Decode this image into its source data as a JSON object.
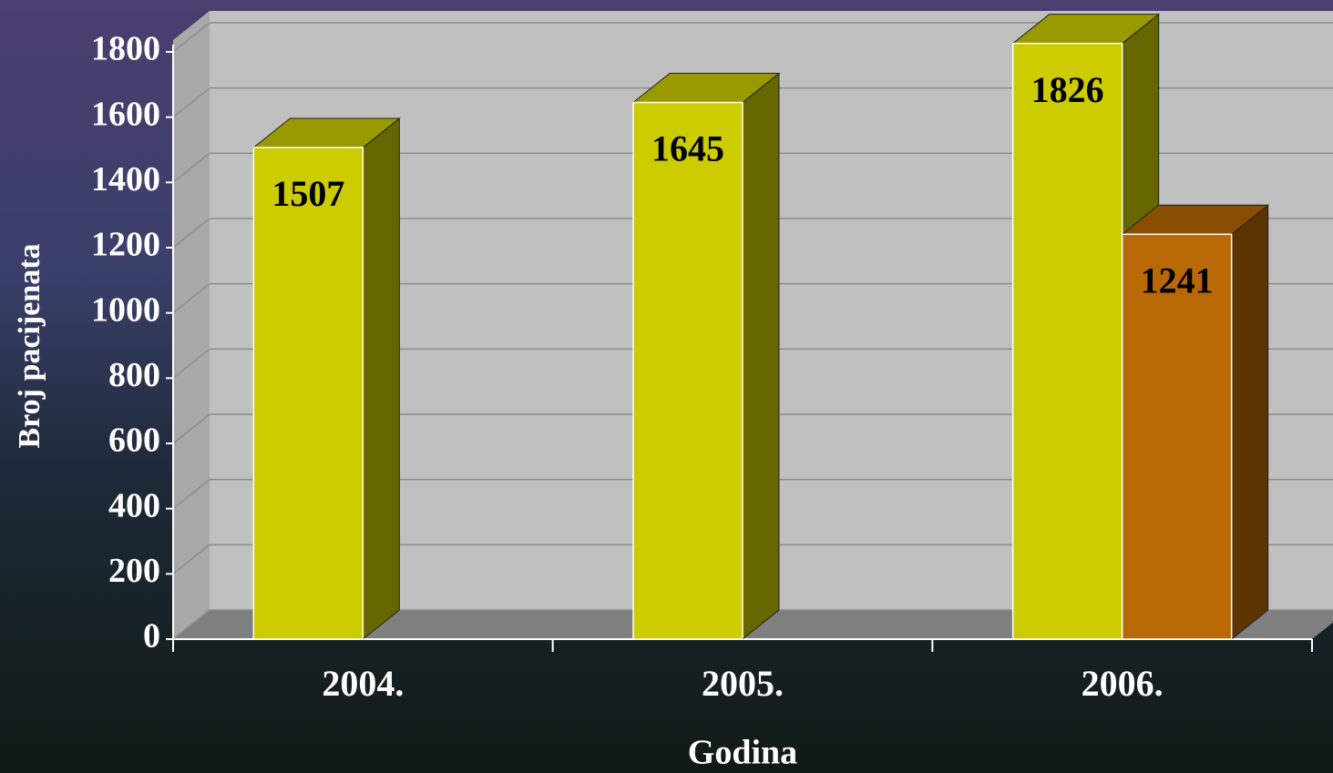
{
  "chart_data": {
    "type": "bar3d",
    "x_label": "Godina",
    "y_label": "Broj pacijenata",
    "categories": [
      "2004.",
      "2005.",
      "2006."
    ],
    "series": [
      {
        "color": "#cccc00",
        "values": [
          1507,
          1645,
          1826
        ]
      },
      {
        "color": "#b86804",
        "values": [
          null,
          null,
          1241
        ]
      }
    ],
    "ylim": [
      0,
      1800
    ],
    "yticks": [
      0,
      200,
      400,
      600,
      800,
      1000,
      1200,
      1400,
      1600,
      1800
    ],
    "grid": true
  }
}
